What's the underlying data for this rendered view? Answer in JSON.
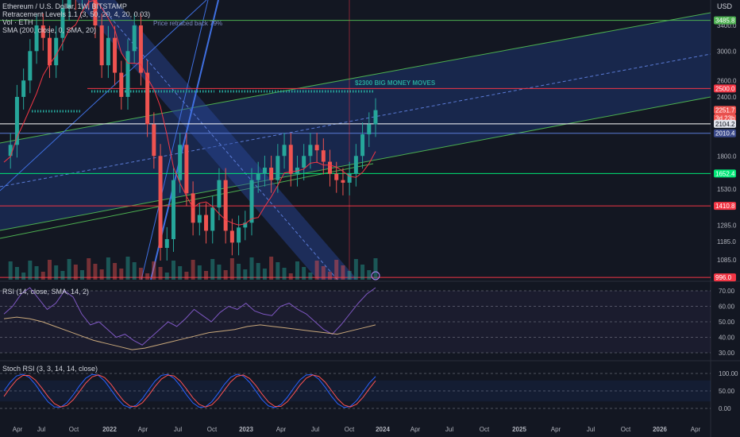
{
  "header": {
    "symbol_line": "Ethereum / U.S. Dollar, 1W, BITSTAMP",
    "retracement_line": "Retracement Levels 1.1 (3, 50, 20, 4, 20, 0.03)",
    "vol_line": "Vol · ETH",
    "sma_line": "SMA (200, close, 0, SMA, 20)",
    "currency": "USD"
  },
  "annotations": {
    "retrace_note": "Price retraced back 79%",
    "big_money": "$2300 BIG MONEY MOVES"
  },
  "colors": {
    "background": "#131722",
    "up": "#26a69a",
    "down": "#ef5350",
    "channel_fill": "#1e3470",
    "channel_line": "#4caf50",
    "sma": "#f23645",
    "rsi": "#7e57c2",
    "rsi_ma": "#c9a87b",
    "stoch_k": "#2962ff",
    "stoch_d": "#ff5252"
  },
  "chart_data": [
    {
      "type": "candlestick",
      "title": "Ethereum / U.S. Dollar, 1W, BITSTAMP",
      "x_ticks": [
        "Apr",
        "Jul",
        "Oct",
        "2022",
        "Apr",
        "Jul",
        "Oct",
        "2023",
        "Apr",
        "Jul",
        "Oct",
        "2024",
        "Apr",
        "Jul",
        "Oct",
        "2025",
        "Apr",
        "Jul",
        "Oct",
        "2026",
        "Apr"
      ],
      "y_ticks": [
        1085.0,
        1185.0,
        1285.0,
        1530.0,
        1800.0,
        2400.0,
        2600.0,
        3000.0,
        3400.0
      ],
      "y_scale": "log",
      "horizontal_levels": [
        {
          "label": "3485.8",
          "value": 3485.8,
          "color": "#4caf50"
        },
        {
          "label": "2500.0",
          "value": 2500.0,
          "color": "#f23645"
        },
        {
          "label": "2251.7",
          "value": 2251.7,
          "color": "#ef5350"
        },
        {
          "label": "3d 23h",
          "value": null,
          "color": "#ef5350"
        },
        {
          "label": "2104.2",
          "value": 2104.2,
          "color": "#ffffff"
        },
        {
          "label": "2010.4",
          "value": 2010.4,
          "color": "#3b4a8c"
        },
        {
          "label": "1652.4",
          "value": 1652.4,
          "color": "#00e676"
        },
        {
          "label": "1410.8",
          "value": 1410.8,
          "color": "#f23645"
        },
        {
          "label": "996.0",
          "value": 996.0,
          "color": "#f23645"
        }
      ]
    },
    {
      "type": "line",
      "title": "RSI (14, close, SMA, 14, 2)",
      "y_ticks": [
        30.0,
        40.0,
        50.0,
        60.0,
        70.0
      ]
    },
    {
      "type": "line",
      "title": "Stoch RSI (3, 3, 14, 14, close)",
      "y_ticks": [
        0.0,
        50.0,
        100.0
      ]
    }
  ]
}
